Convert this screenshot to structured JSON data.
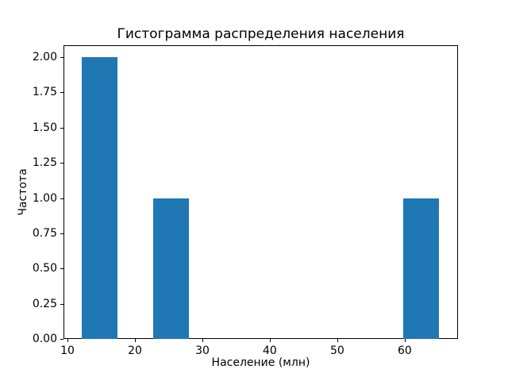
{
  "chart_data": {
    "type": "histogram",
    "title": "Гистограмма распределения населения",
    "xlabel": "Население (млн)",
    "ylabel": "Частота",
    "bar_color": "#1f77b4",
    "background_color": "#ffffff",
    "spine_color": "#000000",
    "grid": false,
    "legend": "none",
    "xlim": [
      9.41,
      67.9
    ],
    "ylim": [
      0,
      2.085
    ],
    "xticks": [
      10,
      20,
      30,
      40,
      50,
      60
    ],
    "yticks": [
      0.0,
      0.25,
      0.5,
      0.75,
      1.0,
      1.25,
      1.5,
      1.75,
      2.0
    ],
    "ytick_labels": [
      "0.00",
      "0.25",
      "0.50",
      "0.75",
      "1.00",
      "1.25",
      "1.50",
      "1.75",
      "2.00"
    ],
    "bins": [
      {
        "range": [
          12.15,
          17.45
        ],
        "frequency": 2
      },
      {
        "range": [
          22.74,
          28.04
        ],
        "frequency": 1
      },
      {
        "range": [
          59.8,
          65.1
        ],
        "frequency": 1
      }
    ]
  }
}
